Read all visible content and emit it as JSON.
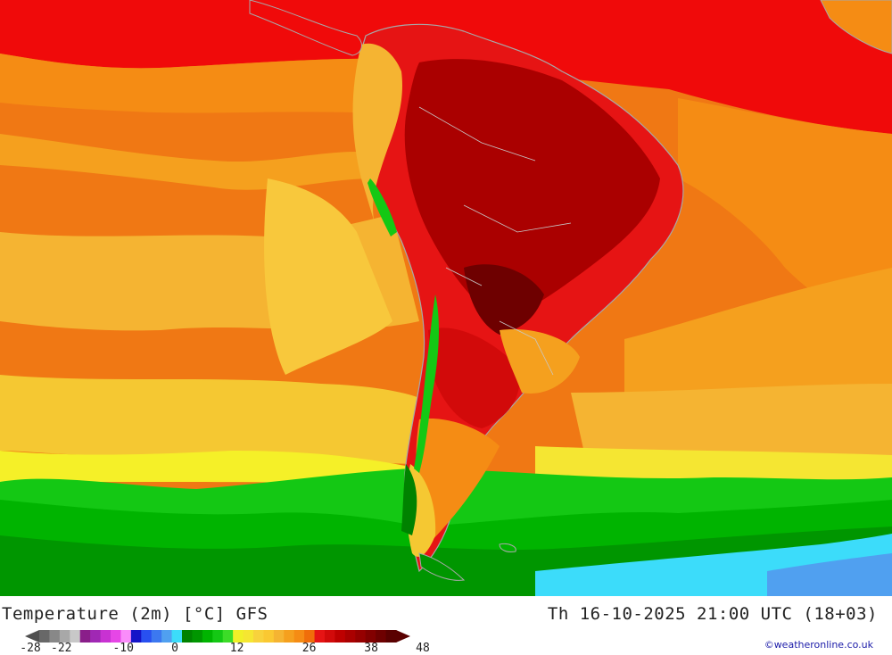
{
  "map": {
    "title": "Temperature (2m) [°C] GFS",
    "valid_time": "Th 16-10-2025 21:00 UTC (18+03)",
    "credit": "©weatheronline.co.uk",
    "region": "South America",
    "land_outline_color": "#a8a8a8"
  },
  "legend": {
    "min": -28,
    "max": 48,
    "labels": [
      "-28",
      "-22",
      "-10",
      "0",
      "12",
      "26",
      "38",
      "48"
    ],
    "label_values": [
      -28,
      -22,
      -10,
      0,
      12,
      26,
      38,
      48
    ],
    "colors": [
      "#686868",
      "#888888",
      "#a8a8a8",
      "#c8c8c8",
      "#8a1e8a",
      "#a028b4",
      "#c832d2",
      "#e646e6",
      "#fa8cfa",
      "#1414c8",
      "#2850f0",
      "#3c78f0",
      "#50a0f0",
      "#3cdcfa",
      "#008200",
      "#009600",
      "#00b400",
      "#14c814",
      "#3cdc28",
      "#f0f028",
      "#f5e632",
      "#f8d23c",
      "#fac832",
      "#f5b432",
      "#f5a01e",
      "#f58c14",
      "#f06e0a",
      "#e61414",
      "#d20a0a",
      "#be0000",
      "#aa0000",
      "#960000",
      "#820000",
      "#6e0000",
      "#5a0000"
    ]
  }
}
